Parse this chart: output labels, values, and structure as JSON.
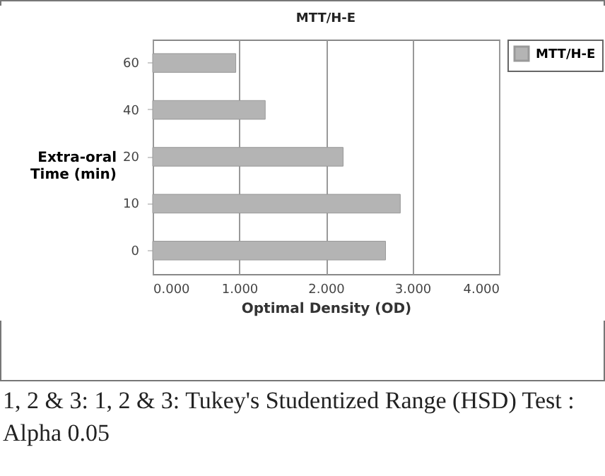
{
  "chart_data": {
    "type": "bar",
    "orientation": "horizontal",
    "title": "MTT/H-E",
    "xlabel": "Optimal Density (OD)",
    "ylabel": "Extra-oral Time (min)",
    "categories": [
      "60",
      "40",
      "20",
      "10",
      "0"
    ],
    "series": [
      {
        "name": "MTT/H-E",
        "color": "#b4b4b4",
        "values": [
          0.96,
          1.3,
          2.2,
          2.86,
          2.69
        ]
      }
    ],
    "xlim": [
      0,
      4
    ],
    "xticks": [
      {
        "value": 0,
        "label": "0.000"
      },
      {
        "value": 1,
        "label": "1.000"
      },
      {
        "value": 2,
        "label": "2.000"
      },
      {
        "value": 3,
        "label": "3.000"
      },
      {
        "value": 4,
        "label": "4.000"
      }
    ],
    "grid": "x",
    "legend": "top right",
    "annotations": [
      "1, 2 & 3: 1, 2 & 3: Tukey's Studentized Range (HSD) Test : Alpha 0.05"
    ]
  }
}
